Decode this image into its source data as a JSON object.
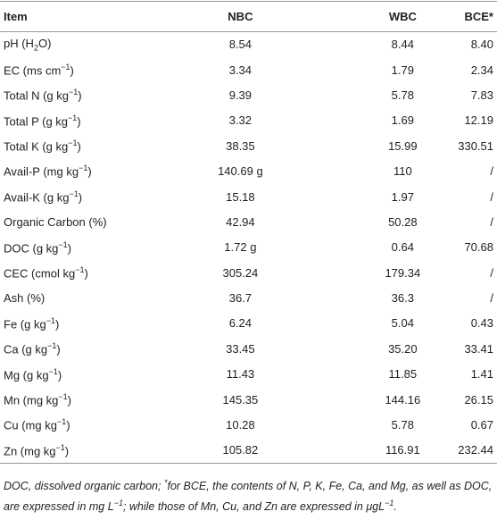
{
  "table": {
    "header": [
      "Item",
      "NBC",
      "WBC",
      "BCE*"
    ],
    "rows": [
      [
        [
          {
            "t": "pH (H"
          },
          {
            "sub": "2"
          },
          {
            "t": "O)"
          }
        ],
        "8.54",
        "8.44",
        "8.40"
      ],
      [
        [
          {
            "t": "EC (ms cm"
          },
          {
            "sup": "−1"
          },
          {
            "t": ")"
          }
        ],
        "3.34",
        "1.79",
        "2.34"
      ],
      [
        [
          {
            "t": "Total N (g kg"
          },
          {
            "sup": "−1"
          },
          {
            "t": ")"
          }
        ],
        "9.39",
        "5.78",
        "7.83"
      ],
      [
        [
          {
            "t": "Total P (g kg"
          },
          {
            "sup": "−1"
          },
          {
            "t": ")"
          }
        ],
        "3.32",
        "1.69",
        "12.19"
      ],
      [
        [
          {
            "t": "Total K (g kg"
          },
          {
            "sup": "−1"
          },
          {
            "t": ")"
          }
        ],
        "38.35",
        "15.99",
        "330.51"
      ],
      [
        [
          {
            "t": "Avail-P (mg kg"
          },
          {
            "sup": "−1"
          },
          {
            "t": ")"
          }
        ],
        "140.69 g",
        "110",
        "/"
      ],
      [
        [
          {
            "t": "Avail-K (g kg"
          },
          {
            "sup": "−1"
          },
          {
            "t": ")"
          }
        ],
        "15.18",
        "1.97",
        "/"
      ],
      [
        [
          {
            "t": "Organic Carbon (%)"
          }
        ],
        "42.94",
        "50.28",
        "/"
      ],
      [
        [
          {
            "t": "DOC (g kg"
          },
          {
            "sup": "−1"
          },
          {
            "t": ")"
          }
        ],
        "1.72 g",
        "0.64",
        "70.68"
      ],
      [
        [
          {
            "t": "CEC (cmol kg"
          },
          {
            "sup": "−1"
          },
          {
            "t": ")"
          }
        ],
        "305.24",
        "179.34",
        "/"
      ],
      [
        [
          {
            "t": "Ash (%)"
          }
        ],
        "36.7",
        "36.3",
        "/"
      ],
      [
        [
          {
            "t": "Fe (g kg"
          },
          {
            "sup": "−1"
          },
          {
            "t": ")"
          }
        ],
        "6.24",
        "5.04",
        "0.43"
      ],
      [
        [
          {
            "t": "Ca (g kg"
          },
          {
            "sup": "−1"
          },
          {
            "t": ")"
          }
        ],
        "33.45",
        "35.20",
        "33.41"
      ],
      [
        [
          {
            "t": "Mg (g kg"
          },
          {
            "sup": "−1"
          },
          {
            "t": ")"
          }
        ],
        "11.43",
        "11.85",
        "1.41"
      ],
      [
        [
          {
            "t": "Mn (mg kg"
          },
          {
            "sup": "−1"
          },
          {
            "t": ")"
          }
        ],
        "145.35",
        "144.16",
        "26.15"
      ],
      [
        [
          {
            "t": "Cu (mg kg"
          },
          {
            "sup": "−1"
          },
          {
            "t": ")"
          }
        ],
        "10.28",
        "5.78",
        "0.67"
      ],
      [
        [
          {
            "t": "Zn (mg kg"
          },
          {
            "sup": "−1"
          },
          {
            "t": ")"
          }
        ],
        "105.82",
        "116.91",
        "232.44"
      ]
    ]
  },
  "footnote": [
    {
      "t": "DOC, dissolved organic carbon; "
    },
    {
      "sup": "*"
    },
    {
      "t": "for BCE, the contents of N, P, K, Fe, Ca, and Mg, as well as DOC, are expressed in mg L"
    },
    {
      "sup": "−1"
    },
    {
      "t": "; while those of Mn, Cu, and Zn are expressed in μgL"
    },
    {
      "sup": "−1"
    },
    {
      "t": "."
    }
  ]
}
